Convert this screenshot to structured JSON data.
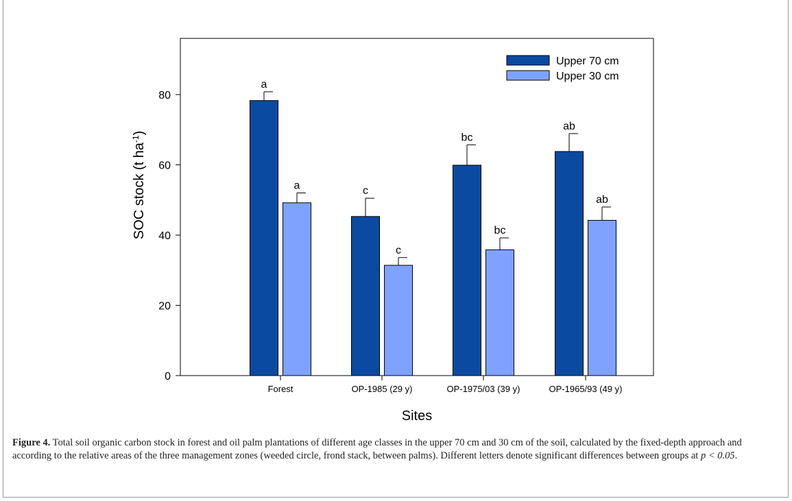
{
  "chart_data": {
    "type": "bar",
    "categories": [
      "Forest",
      "OP-1985 (29 y)",
      "OP-1975/03 (39 y)",
      "OP-1965/93 (49 y)"
    ],
    "series": [
      {
        "name": "Upper 70 cm",
        "values": [
          78.3,
          45.3,
          59.9,
          63.8
        ],
        "errors": [
          2.5,
          5.2,
          5.8,
          5.1
        ],
        "labels": [
          "a",
          "c",
          "bc",
          "ab"
        ],
        "color": "#0a4aa0"
      },
      {
        "name": "Upper 30 cm",
        "values": [
          49.2,
          31.4,
          35.8,
          44.2
        ],
        "errors": [
          2.8,
          2.2,
          3.4,
          3.8
        ],
        "labels": [
          "a",
          "c",
          "bc",
          "ab"
        ],
        "color": "#7fa2ff"
      }
    ],
    "ylim": [
      0,
      96
    ],
    "yticks": [
      0,
      20,
      40,
      60,
      80
    ],
    "ylabel": "SOC stock (t ha",
    "ylabel_sup": "-1",
    "ylabel_end": ")",
    "xlabel": "Sites",
    "legend_position": "top-right",
    "grid": false
  },
  "caption": {
    "label": "Figure 4.",
    "text_before_p": " Total soil organic carbon stock in forest and oil palm plantations of different age classes in the upper 70 cm and 30 cm of the soil, calculated by the fixed-depth approach and according to the relative areas of the three management zones (weeded circle, frond stack, between palms). Different letters denote significant differences between groups at ",
    "p_expr": "p < 0.05",
    "text_after_p": "."
  }
}
